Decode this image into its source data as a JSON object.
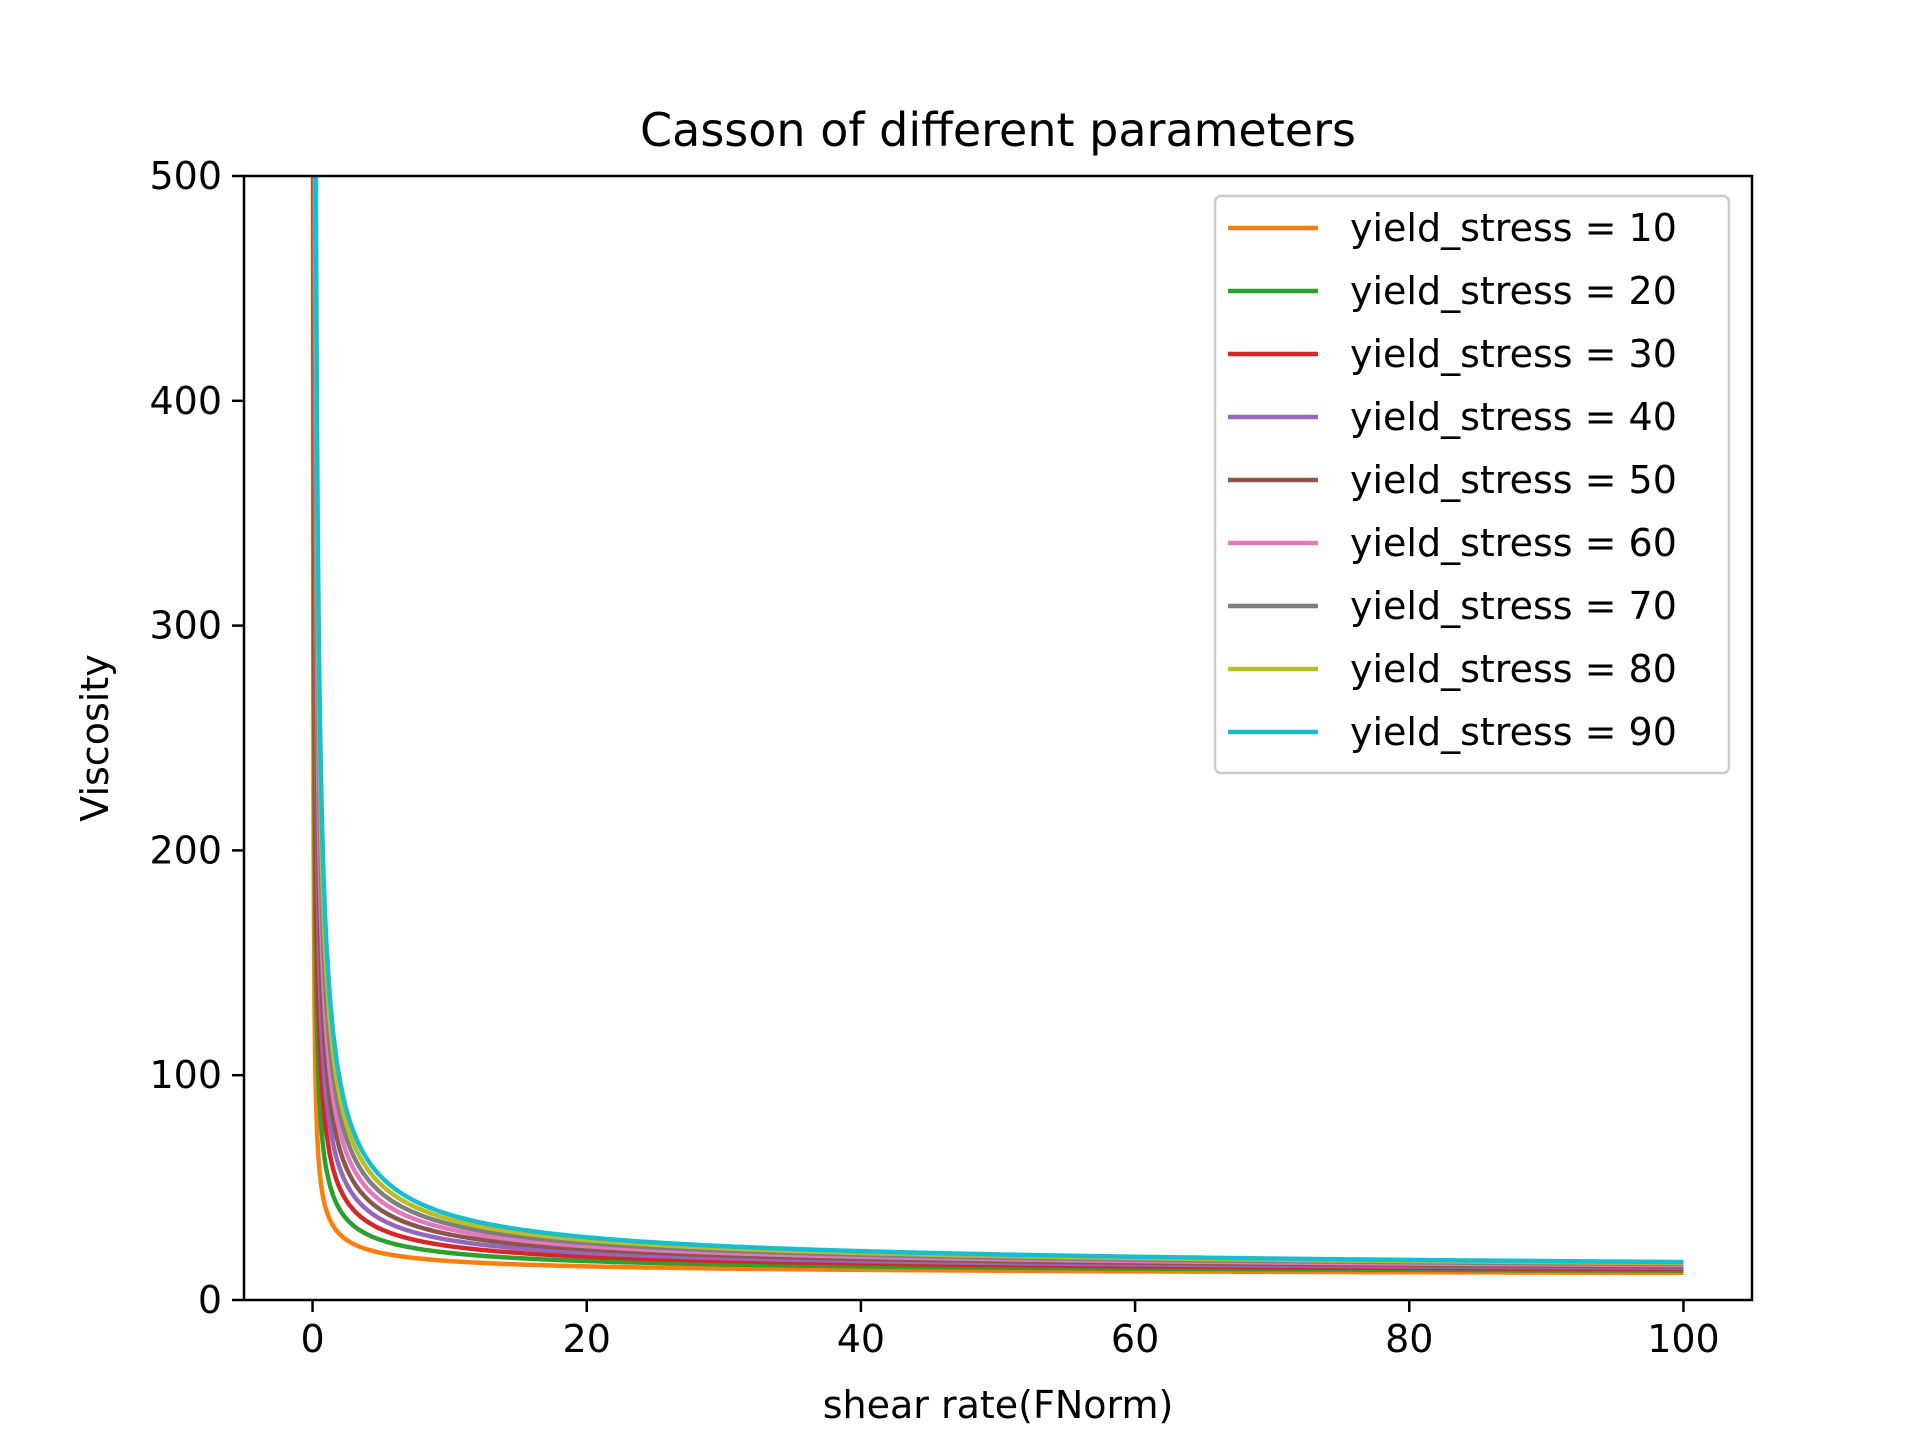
{
  "chart_data": {
    "type": "line",
    "title": "Casson of different parameters",
    "xlabel": "shear rate(FNorm)",
    "ylabel": "Viscosity",
    "xlim": [
      -5,
      105
    ],
    "ylim": [
      0,
      500
    ],
    "xticks": [
      0,
      20,
      40,
      60,
      80,
      100
    ],
    "yticks": [
      0,
      100,
      200,
      300,
      400,
      500
    ],
    "grid": false,
    "legend_position": "upper right",
    "model": "casson",
    "plastic_viscosity": 10,
    "shear_rate_range": [
      0.01,
      100
    ],
    "series": [
      {
        "name": "yield_stress = 10",
        "yield_stress": 10,
        "color": "#ff7f0e"
      },
      {
        "name": "yield_stress = 20",
        "yield_stress": 20,
        "color": "#2ca02c"
      },
      {
        "name": "yield_stress = 30",
        "yield_stress": 30,
        "color": "#d62728"
      },
      {
        "name": "yield_stress = 40",
        "yield_stress": 40,
        "color": "#9467bd"
      },
      {
        "name": "yield_stress = 50",
        "yield_stress": 50,
        "color": "#8c564b"
      },
      {
        "name": "yield_stress = 60",
        "yield_stress": 60,
        "color": "#e377c2"
      },
      {
        "name": "yield_stress = 70",
        "yield_stress": 70,
        "color": "#7f7f7f"
      },
      {
        "name": "yield_stress = 80",
        "yield_stress": 80,
        "color": "#bcbd22"
      },
      {
        "name": "yield_stress = 90",
        "yield_stress": 90,
        "color": "#17becf"
      }
    ]
  }
}
